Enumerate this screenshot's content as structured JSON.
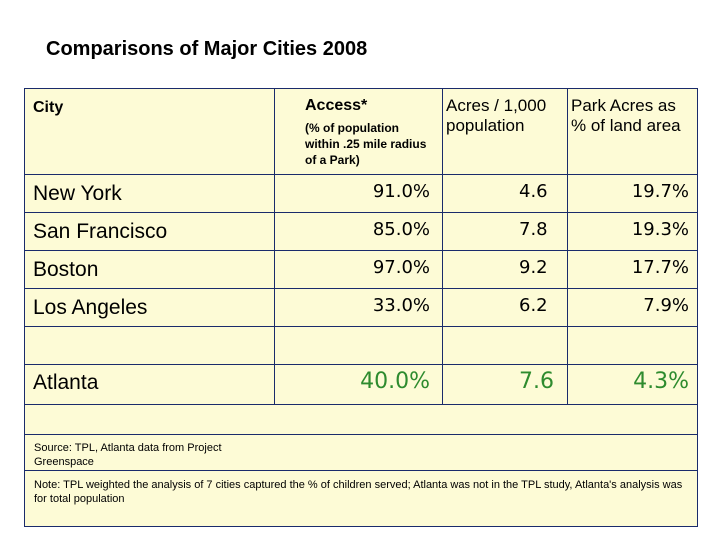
{
  "title": "Comparisons of Major Cities 2008",
  "headers": {
    "city": "City",
    "access": "Access*",
    "access_sub": "(% of population within .25 mile radius of a Park)",
    "acres": "Acres / 1,000 population",
    "park": "Park Acres as % of land area"
  },
  "rows": [
    {
      "city": "New York",
      "access": "91.0%",
      "acres": "4.6",
      "park": "19.7%"
    },
    {
      "city": "San Francisco",
      "access": "85.0%",
      "acres": "7.8",
      "park": "19.3%"
    },
    {
      "city": "Boston",
      "access": "97.0%",
      "acres": "9.2",
      "park": "17.7%"
    },
    {
      "city": "Los Angeles",
      "access": "33.0%",
      "acres": "6.2",
      "park": "7.9%"
    },
    {
      "city": "Atlanta",
      "access": "40.0%",
      "acres": "7.6",
      "park": "4.3%"
    }
  ],
  "source": "Source: TPL, Atlanta data from Project Greenspace",
  "note": "Note: TPL weighted the analysis of 7 cities captured the % of children served; Atlanta was not in the TPL study, Atlanta's analysis was for total population",
  "colors": {
    "accent_green": "#2e8b2e",
    "panel_bg": "#fdfbd6",
    "border": "#1a2b6b"
  }
}
